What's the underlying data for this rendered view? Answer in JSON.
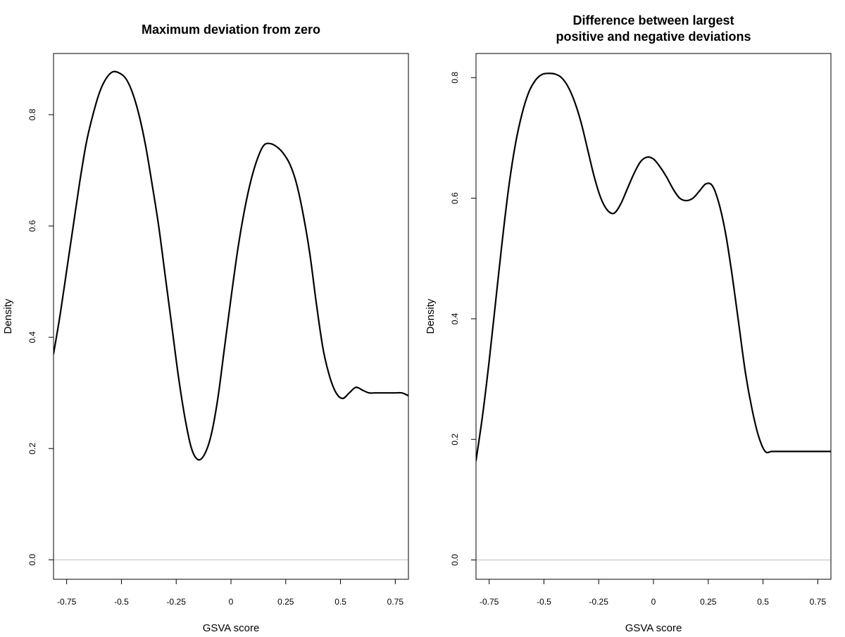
{
  "chart_data": [
    {
      "type": "line",
      "title": [
        "Maximum deviation from zero"
      ],
      "xlabel": "GSVA score",
      "ylabel": "Density",
      "xlim": [
        -0.81,
        0.81
      ],
      "ylim": [
        -0.035,
        0.91
      ],
      "x_ticks": [
        -0.75,
        -0.5,
        -0.25,
        0,
        0.25,
        0.5,
        0.75
      ],
      "x_tick_labels": [
        "-0.75",
        "-0.5",
        "-0.25",
        "0",
        "0.25",
        "0.5",
        "0.75"
      ],
      "y_ticks": [
        0.0,
        0.2,
        0.4,
        0.6,
        0.8
      ],
      "y_tick_labels": [
        "0.0",
        "0.2",
        "0.4",
        "0.6",
        "0.8"
      ],
      "baseline": 0,
      "series": [
        {
          "name": "density",
          "x": [
            -0.81,
            -0.78,
            -0.75,
            -0.72,
            -0.69,
            -0.66,
            -0.63,
            -0.6,
            -0.57,
            -0.54,
            -0.51,
            -0.48,
            -0.45,
            -0.42,
            -0.39,
            -0.36,
            -0.33,
            -0.3,
            -0.27,
            -0.24,
            -0.21,
            -0.18,
            -0.15,
            -0.12,
            -0.09,
            -0.06,
            -0.03,
            0.0,
            0.03,
            0.06,
            0.09,
            0.12,
            0.15,
            0.18,
            0.21,
            0.24,
            0.27,
            0.3,
            0.33,
            0.36,
            0.39,
            0.42,
            0.45,
            0.48,
            0.51,
            0.54,
            0.57,
            0.6,
            0.63,
            0.66,
            0.69,
            0.72,
            0.75,
            0.78,
            0.81
          ],
          "y": [
            0.37,
            0.44,
            0.52,
            0.6,
            0.68,
            0.75,
            0.8,
            0.84,
            0.865,
            0.877,
            0.875,
            0.865,
            0.84,
            0.8,
            0.745,
            0.675,
            0.6,
            0.51,
            0.42,
            0.33,
            0.255,
            0.2,
            0.18,
            0.19,
            0.225,
            0.29,
            0.38,
            0.47,
            0.555,
            0.625,
            0.68,
            0.72,
            0.745,
            0.748,
            0.742,
            0.73,
            0.71,
            0.675,
            0.62,
            0.55,
            0.46,
            0.38,
            0.33,
            0.3,
            0.29,
            0.3,
            0.31,
            0.305,
            0.3,
            0.3,
            0.3,
            0.3,
            0.3,
            0.3,
            0.295
          ]
        }
      ]
    },
    {
      "type": "line",
      "title": [
        "Difference between largest",
        "positive and negative deviations"
      ],
      "xlabel": "GSVA score",
      "ylabel": "Density",
      "xlim": [
        -0.81,
        0.81
      ],
      "ylim": [
        -0.032,
        0.84
      ],
      "x_ticks": [
        -0.75,
        -0.5,
        -0.25,
        0,
        0.25,
        0.5,
        0.75
      ],
      "x_tick_labels": [
        "-0.75",
        "-0.5",
        "-0.25",
        "0",
        "0.25",
        "0.5",
        "0.75"
      ],
      "y_ticks": [
        0.0,
        0.2,
        0.4,
        0.6,
        0.8
      ],
      "y_tick_labels": [
        "0.0",
        "0.2",
        "0.4",
        "0.6",
        "0.8"
      ],
      "baseline": 0,
      "series": [
        {
          "name": "density",
          "x": [
            -0.81,
            -0.78,
            -0.75,
            -0.72,
            -0.69,
            -0.66,
            -0.63,
            -0.6,
            -0.57,
            -0.54,
            -0.51,
            -0.48,
            -0.45,
            -0.42,
            -0.39,
            -0.36,
            -0.33,
            -0.3,
            -0.27,
            -0.24,
            -0.21,
            -0.18,
            -0.15,
            -0.12,
            -0.09,
            -0.06,
            -0.03,
            0.0,
            0.03,
            0.06,
            0.09,
            0.12,
            0.15,
            0.18,
            0.21,
            0.24,
            0.27,
            0.3,
            0.33,
            0.36,
            0.39,
            0.42,
            0.45,
            0.48,
            0.51,
            0.54,
            0.57,
            0.6,
            0.63,
            0.66,
            0.69,
            0.72,
            0.75,
            0.78,
            0.81
          ],
          "y": [
            0.165,
            0.24,
            0.33,
            0.43,
            0.53,
            0.62,
            0.69,
            0.74,
            0.775,
            0.795,
            0.805,
            0.807,
            0.806,
            0.8,
            0.785,
            0.76,
            0.725,
            0.68,
            0.635,
            0.6,
            0.58,
            0.575,
            0.59,
            0.615,
            0.64,
            0.66,
            0.668,
            0.665,
            0.652,
            0.635,
            0.615,
            0.6,
            0.596,
            0.6,
            0.612,
            0.624,
            0.62,
            0.59,
            0.54,
            0.47,
            0.39,
            0.31,
            0.25,
            0.205,
            0.18,
            0.18,
            0.18,
            0.18,
            0.18,
            0.18,
            0.18,
            0.18,
            0.18,
            0.18,
            0.18
          ]
        }
      ]
    }
  ]
}
